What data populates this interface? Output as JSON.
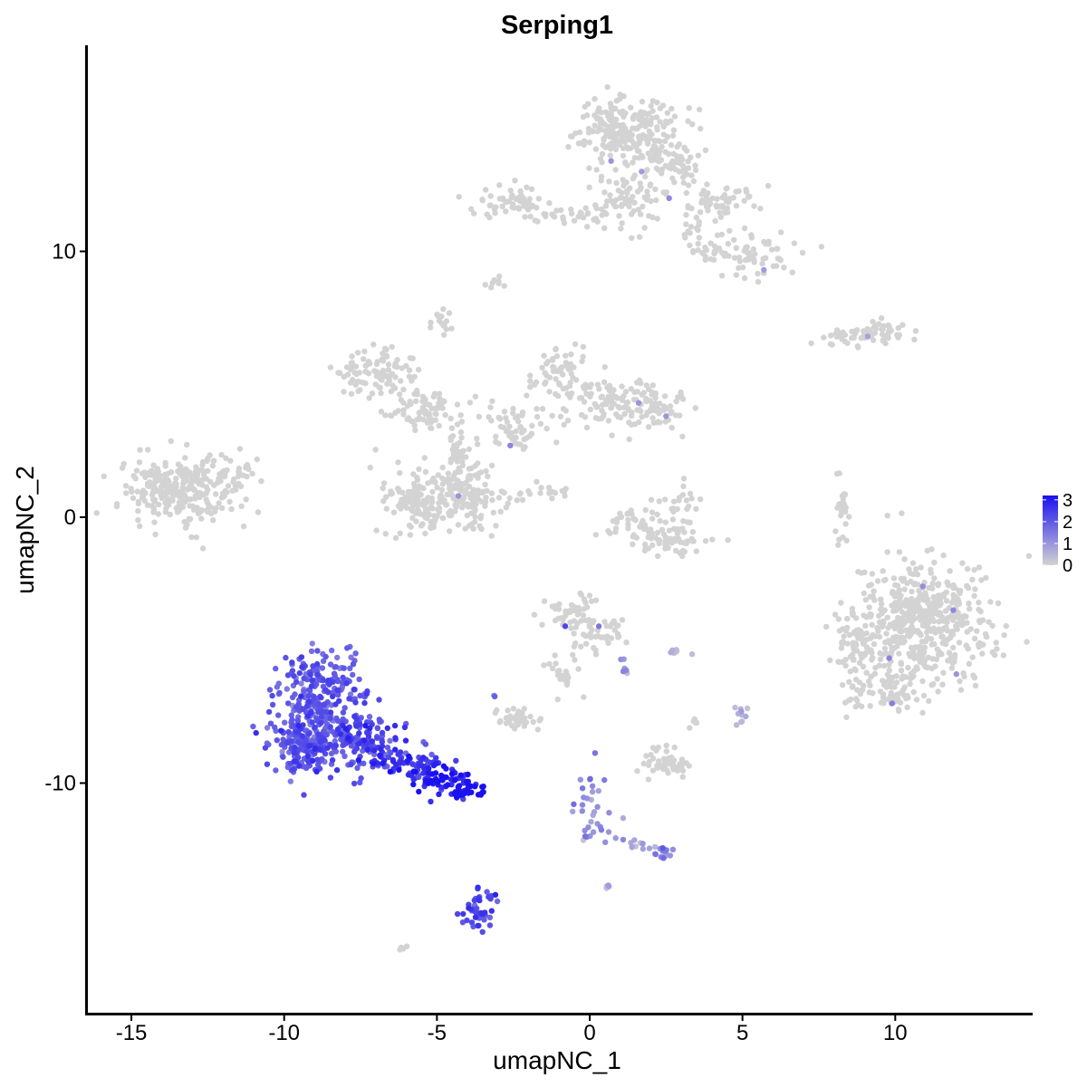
{
  "chart_data": {
    "type": "scatter",
    "title": "Serping1",
    "xlabel": "umapNC_1",
    "ylabel": "umapNC_2",
    "xlim": [
      -16.5,
      14.5
    ],
    "ylim": [
      -18.5,
      17.5
    ],
    "xticks": [
      -15,
      -10,
      -5,
      0,
      5,
      10
    ],
    "yticks": [
      -10,
      0,
      10
    ],
    "x_tick_labels": [
      "-15",
      "-10",
      "-5",
      "0",
      "5",
      "10"
    ],
    "y_tick_labels": [
      "-10",
      "0",
      "10"
    ],
    "grid": false,
    "color_scale": {
      "low_color": "#d3d3d3",
      "high_color": "#1b10f0",
      "min": 0,
      "max": 3.2,
      "ticks": [
        0,
        1,
        2,
        3
      ],
      "tick_labels": [
        "0",
        "1",
        "2",
        "3"
      ],
      "placement": "right"
    },
    "clusters": [
      {
        "cx": -13.5,
        "cy": 1.0,
        "sx": 0.9,
        "sy": 0.6,
        "n": 260,
        "expr": 0.0
      },
      {
        "cx": -12.0,
        "cy": 1.8,
        "sx": 0.6,
        "sy": 0.4,
        "n": 40,
        "expr": 0.0
      },
      {
        "cx": -6.9,
        "cy": 5.4,
        "sx": 0.6,
        "sy": 0.4,
        "n": 90,
        "expr": 0.0
      },
      {
        "cx": -5.4,
        "cy": 4.0,
        "sx": 0.6,
        "sy": 0.4,
        "n": 80,
        "expr": 0.0
      },
      {
        "cx": -4.3,
        "cy": 2.4,
        "sx": 0.3,
        "sy": 0.6,
        "n": 50,
        "expr": 0.0
      },
      {
        "cx": -5.6,
        "cy": 0.6,
        "sx": 0.6,
        "sy": 0.6,
        "n": 140,
        "expr": 0.0
      },
      {
        "cx": -3.9,
        "cy": 0.8,
        "sx": 0.6,
        "sy": 0.6,
        "n": 130,
        "expr": 0.0
      },
      {
        "cx": -2.3,
        "cy": 3.3,
        "sx": 0.6,
        "sy": 0.5,
        "n": 60,
        "expr": 0.0
      },
      {
        "cx": -1.0,
        "cy": 5.5,
        "sx": 0.5,
        "sy": 0.5,
        "n": 60,
        "expr": 0.0
      },
      {
        "cx": 0.5,
        "cy": 4.4,
        "sx": 0.6,
        "sy": 0.4,
        "n": 70,
        "expr": 0.0
      },
      {
        "cx": 1.9,
        "cy": 4.0,
        "sx": 0.6,
        "sy": 0.4,
        "n": 80,
        "expr": 0.0
      },
      {
        "cx": -1.6,
        "cy": 1.0,
        "sx": 0.6,
        "sy": 0.15,
        "n": 20,
        "expr": 0.0
      },
      {
        "cx": -4.8,
        "cy": 7.4,
        "sx": 0.15,
        "sy": 0.2,
        "n": 15,
        "expr": 0.0
      },
      {
        "cx": -3.0,
        "cy": 8.8,
        "sx": 0.15,
        "sy": 0.1,
        "n": 8,
        "expr": 0.0
      },
      {
        "cx": 1.2,
        "cy": 14.6,
        "sx": 0.8,
        "sy": 0.6,
        "n": 240,
        "expr": 0.0
      },
      {
        "cx": 2.7,
        "cy": 13.4,
        "sx": 0.5,
        "sy": 0.5,
        "n": 60,
        "expr": 0.0
      },
      {
        "cx": 1.2,
        "cy": 12.0,
        "sx": 0.6,
        "sy": 0.6,
        "n": 80,
        "expr": 0.0
      },
      {
        "cx": 4.3,
        "cy": 11.9,
        "sx": 0.8,
        "sy": 0.3,
        "n": 60,
        "expr": 0.0
      },
      {
        "cx": 5.2,
        "cy": 9.9,
        "sx": 0.7,
        "sy": 0.4,
        "n": 60,
        "expr": 0.0
      },
      {
        "cx": 3.6,
        "cy": 10.4,
        "sx": 0.4,
        "sy": 0.5,
        "n": 30,
        "expr": 0.0
      },
      {
        "cx": -2.6,
        "cy": 11.9,
        "sx": 0.6,
        "sy": 0.3,
        "n": 60,
        "expr": 0.0
      },
      {
        "cx": -0.7,
        "cy": 11.3,
        "sx": 0.6,
        "sy": 0.2,
        "n": 30,
        "expr": 0.0
      },
      {
        "cx": 8.4,
        "cy": 6.8,
        "sx": 0.6,
        "sy": 0.15,
        "n": 25,
        "expr": 0.0
      },
      {
        "cx": 9.5,
        "cy": 7.0,
        "sx": 0.5,
        "sy": 0.25,
        "n": 40,
        "expr": 0.0
      },
      {
        "cx": 1.5,
        "cy": -0.2,
        "sx": 0.6,
        "sy": 0.4,
        "n": 40,
        "expr": 0.0
      },
      {
        "cx": 2.8,
        "cy": -0.8,
        "sx": 0.6,
        "sy": 0.3,
        "n": 60,
        "expr": 0.0
      },
      {
        "cx": 3.1,
        "cy": 0.6,
        "sx": 0.2,
        "sy": 0.4,
        "n": 20,
        "expr": 0.0
      },
      {
        "cx": 8.2,
        "cy": 0.2,
        "sx": 0.12,
        "sy": 0.6,
        "n": 25,
        "expr": 0.0
      },
      {
        "cx": 10.9,
        "cy": -3.9,
        "sx": 1.1,
        "sy": 1.2,
        "n": 500,
        "expr": 0.0
      },
      {
        "cx": 8.7,
        "cy": -4.7,
        "sx": 0.4,
        "sy": 0.6,
        "n": 60,
        "expr": 0.0
      },
      {
        "cx": 9.6,
        "cy": -6.5,
        "sx": 0.6,
        "sy": 0.4,
        "n": 70,
        "expr": 0.0
      },
      {
        "cx": -0.6,
        "cy": -3.5,
        "sx": 0.4,
        "sy": 0.3,
        "n": 50,
        "expr": 0.0
      },
      {
        "cx": 0.3,
        "cy": -4.4,
        "sx": 0.5,
        "sy": 0.4,
        "n": 40,
        "expr": 0.0
      },
      {
        "cx": -0.9,
        "cy": -6.0,
        "sx": 0.3,
        "sy": 0.6,
        "n": 25,
        "expr": 0.0
      },
      {
        "cx": -2.3,
        "cy": -7.6,
        "sx": 0.4,
        "sy": 0.2,
        "n": 40,
        "expr": 0.0
      },
      {
        "cx": 2.6,
        "cy": -9.4,
        "sx": 0.4,
        "sy": 0.2,
        "n": 45,
        "expr": 0.0
      },
      {
        "cx": 2.4,
        "cy": -8.8,
        "sx": 0.2,
        "sy": 0.3,
        "n": 10,
        "expr": 0.0
      },
      {
        "cx": 5.0,
        "cy": -7.5,
        "sx": 0.12,
        "sy": 0.2,
        "n": 10,
        "expr": 0.6
      },
      {
        "cx": 3.4,
        "cy": -7.7,
        "sx": 0.08,
        "sy": 0.15,
        "n": 5,
        "expr": 0.0
      },
      {
        "cx": 2.8,
        "cy": -5.1,
        "sx": 0.25,
        "sy": 0.08,
        "n": 7,
        "expr": 0.4
      },
      {
        "cx": 1.1,
        "cy": -5.6,
        "sx": 0.1,
        "sy": 0.2,
        "n": 6,
        "expr": 0.7
      },
      {
        "cx": -6.1,
        "cy": -16.2,
        "sx": 0.1,
        "sy": 0.05,
        "n": 4,
        "expr": 0.0
      },
      {
        "cx": -8.7,
        "cy": -6.6,
        "sx": 0.7,
        "sy": 0.8,
        "n": 220,
        "expr": 2.0
      },
      {
        "cx": -9.4,
        "cy": -8.5,
        "sx": 0.6,
        "sy": 0.6,
        "n": 170,
        "expr": 2.0
      },
      {
        "cx": -7.7,
        "cy": -8.4,
        "sx": 0.7,
        "sy": 0.5,
        "n": 150,
        "expr": 2.1
      },
      {
        "cx": -6.0,
        "cy": -9.2,
        "sx": 0.7,
        "sy": 0.3,
        "n": 80,
        "expr": 2.5
      },
      {
        "cx": -4.8,
        "cy": -9.9,
        "sx": 0.5,
        "sy": 0.25,
        "n": 60,
        "expr": 2.9
      },
      {
        "cx": -4.0,
        "cy": -10.3,
        "sx": 0.25,
        "sy": 0.12,
        "n": 30,
        "expr": 3.2
      },
      {
        "cx": -3.6,
        "cy": -14.7,
        "sx": 0.25,
        "sy": 0.4,
        "n": 45,
        "expr": 2.2
      },
      {
        "cx": 0.0,
        "cy": -10.4,
        "sx": 0.3,
        "sy": 0.6,
        "n": 20,
        "expr": 1.0
      },
      {
        "cx": 0.3,
        "cy": -11.8,
        "sx": 0.3,
        "sy": 0.3,
        "n": 15,
        "expr": 1.0
      },
      {
        "cx": 1.6,
        "cy": -12.3,
        "sx": 0.4,
        "sy": 0.12,
        "n": 10,
        "expr": 0.7
      },
      {
        "cx": 2.4,
        "cy": -12.6,
        "sx": 0.2,
        "sy": 0.12,
        "n": 15,
        "expr": 1.3
      },
      {
        "cx": 0.6,
        "cy": -13.9,
        "sx": 0.05,
        "sy": 0.05,
        "n": 4,
        "expr": 1.0
      },
      {
        "cx": -3.1,
        "cy": -6.7,
        "sx": 0.05,
        "sy": 0.05,
        "n": 2,
        "expr": 1.8
      }
    ],
    "highlight_points": [
      {
        "x": -0.8,
        "y": -4.1,
        "expr": 2.3
      },
      {
        "x": 2.6,
        "y": 12.0,
        "expr": 1.2
      },
      {
        "x": 1.7,
        "y": 13.0,
        "expr": 0.9
      },
      {
        "x": 0.7,
        "y": 13.4,
        "expr": 1.0
      },
      {
        "x": 5.7,
        "y": 9.3,
        "expr": 0.9
      },
      {
        "x": 1.6,
        "y": 4.3,
        "expr": 1.0
      },
      {
        "x": 2.5,
        "y": 3.8,
        "expr": 1.0
      },
      {
        "x": -2.6,
        "y": 2.7,
        "expr": 1.3
      },
      {
        "x": -4.3,
        "y": 0.8,
        "expr": 1.0
      },
      {
        "x": 10.9,
        "y": -2.6,
        "expr": 1.1
      },
      {
        "x": 9.9,
        "y": -7.0,
        "expr": 1.4
      },
      {
        "x": 11.9,
        "y": -3.5,
        "expr": 1.2
      },
      {
        "x": 9.8,
        "y": -5.3,
        "expr": 1.3
      },
      {
        "x": 12.0,
        "y": -5.9,
        "expr": 1.0
      },
      {
        "x": 0.3,
        "y": -4.1,
        "expr": 1.5
      },
      {
        "x": 1.1,
        "y": -5.8,
        "expr": 1.3
      },
      {
        "x": 9.1,
        "y": 6.8,
        "expr": 0.8
      }
    ]
  }
}
